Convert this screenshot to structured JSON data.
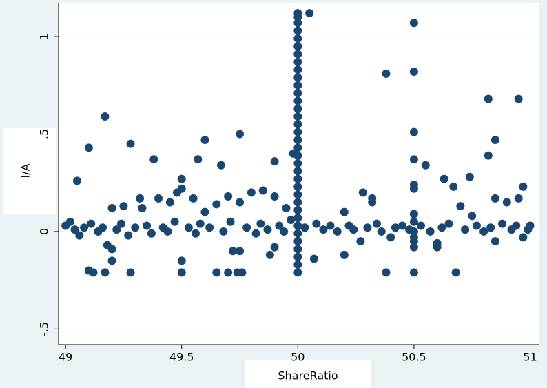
{
  "chart_data": {
    "type": "scatter",
    "x_label": "ShareRatio",
    "y_label": "I/A",
    "color": "#1a476f",
    "grid": true,
    "xlim": [
      48.97,
      51.04
    ],
    "ylim": [
      -0.58,
      1.17
    ],
    "xticks": [
      49,
      49.5,
      50,
      50.5,
      51
    ],
    "yticks": [
      {
        "value": -0.5,
        "label": "-.5"
      },
      0,
      {
        "value": 0.5,
        "label": ".5"
      },
      1
    ],
    "x": [
      50,
      50,
      50,
      50,
      50,
      50,
      50,
      50,
      50,
      50,
      50,
      50,
      50,
      50,
      50,
      50,
      50,
      50,
      50,
      50,
      50,
      50,
      50,
      50,
      50,
      50,
      50,
      50,
      50,
      50,
      50,
      50,
      50,
      50,
      50,
      50.5,
      50.5,
      50.5,
      50.5,
      50.5,
      50.5,
      50.5,
      50.5,
      50.5,
      50.5,
      50.5,
      50.5,
      50.5,
      50.05,
      50.38,
      49.17,
      49.75,
      49.6,
      49.28,
      49.1,
      49.98,
      49.38,
      49.57,
      49.9,
      49.67,
      50.55,
      49.05,
      49.5,
      49.5,
      49.48,
      50.82,
      50.95,
      50.82,
      50.85,
      50.63,
      50.67,
      50.74,
      50.97,
      50.28,
      49.8,
      49.85,
      49.9,
      49.7,
      50.32,
      50.32,
      49.32,
      49.4,
      49.2,
      49.25,
      49.33,
      49.45,
      49.55,
      49.6,
      49.65,
      49.75,
      49.95,
      50.2,
      50.85,
      50.9,
      50.95,
      50.7,
      50.75,
      50.45,
      49.1,
      49.12,
      49.17,
      49.28,
      49.5,
      49.5,
      49.2,
      49.2,
      49.18,
      49.65,
      49.7,
      49.74,
      49.76,
      49.72,
      49.75,
      49.88,
      49.9,
      50.07,
      50.2,
      50.38,
      50.68,
      50.6,
      50.6,
      50.85,
      50.97,
      50.27,
      50.4,
      49.0,
      49.02,
      49.04,
      49.06,
      49.08,
      49.11,
      49.14,
      49.16,
      49.22,
      49.24,
      49.27,
      49.3,
      49.35,
      49.37,
      49.42,
      49.44,
      49.47,
      49.53,
      49.56,
      49.58,
      49.62,
      49.68,
      49.71,
      49.78,
      49.82,
      49.84,
      49.87,
      49.92,
      49.94,
      49.97,
      50.03,
      50.08,
      50.11,
      50.14,
      50.17,
      50.22,
      50.24,
      50.3,
      50.34,
      50.36,
      50.42,
      50.48,
      50.53,
      50.57,
      50.62,
      50.65,
      50.72,
      50.77,
      50.8,
      50.83,
      50.88,
      50.92,
      50.94,
      50.99,
      51.0
    ],
    "values": [
      -0.21,
      -0.17,
      -0.13,
      -0.09,
      -0.05,
      -0.01,
      0.03,
      0.07,
      0.11,
      0.15,
      0.19,
      0.23,
      0.27,
      0.31,
      0.35,
      0.39,
      0.43,
      0.47,
      0.51,
      0.55,
      0.59,
      0.63,
      0.67,
      0.71,
      0.75,
      0.79,
      0.83,
      0.87,
      0.91,
      0.95,
      0.99,
      1.03,
      1.07,
      1.1,
      1.12,
      1.07,
      0.82,
      0.51,
      0.37,
      0.24,
      0.22,
      0.09,
      0.05,
      0,
      -0.03,
      -0.05,
      -0.08,
      -0.21,
      1.12,
      0.81,
      0.59,
      0.5,
      0.47,
      0.45,
      0.43,
      0.4,
      0.37,
      0.37,
      0.36,
      0.34,
      0.34,
      0.26,
      0.27,
      0.22,
      0.2,
      0.68,
      0.68,
      0.39,
      0.47,
      0.27,
      0.23,
      0.28,
      0.23,
      0.2,
      0.2,
      0.21,
      0.18,
      0.18,
      0.17,
      0.15,
      0.17,
      0.17,
      0.12,
      0.13,
      0.12,
      0.15,
      0.17,
      0.1,
      0.14,
      0.15,
      0.12,
      0.1,
      0.17,
      0.15,
      0.17,
      0.13,
      0.08,
      0.03,
      -0.2,
      -0.21,
      -0.21,
      -0.21,
      -0.21,
      -0.15,
      -0.15,
      -0.09,
      -0.07,
      -0.21,
      -0.21,
      -0.21,
      -0.21,
      -0.1,
      -0.1,
      -0.12,
      -0.08,
      -0.14,
      -0.12,
      -0.21,
      -0.21,
      -0.08,
      -0.06,
      -0.05,
      -0.03,
      -0.05,
      -0.03,
      0.03,
      0.05,
      0.01,
      -0.02,
      0.02,
      0.04,
      0,
      0.02,
      0.01,
      0.04,
      -0.02,
      0.02,
      0.03,
      -0.01,
      0.02,
      0,
      0.05,
      0.02,
      -0.01,
      0.04,
      0.02,
      0,
      0.05,
      0.02,
      -0.01,
      0.04,
      0.01,
      0.03,
      0,
      0.06,
      0.02,
      0.04,
      0.01,
      0.03,
      0,
      0.03,
      0.01,
      0.02,
      0.04,
      0,
      0.02,
      0.01,
      0.03,
      0,
      0.02,
      0.04,
      0.01,
      0.03,
      0,
      0.02,
      0.04,
      0.01,
      0.03,
      0.01,
      0.03
    ]
  }
}
